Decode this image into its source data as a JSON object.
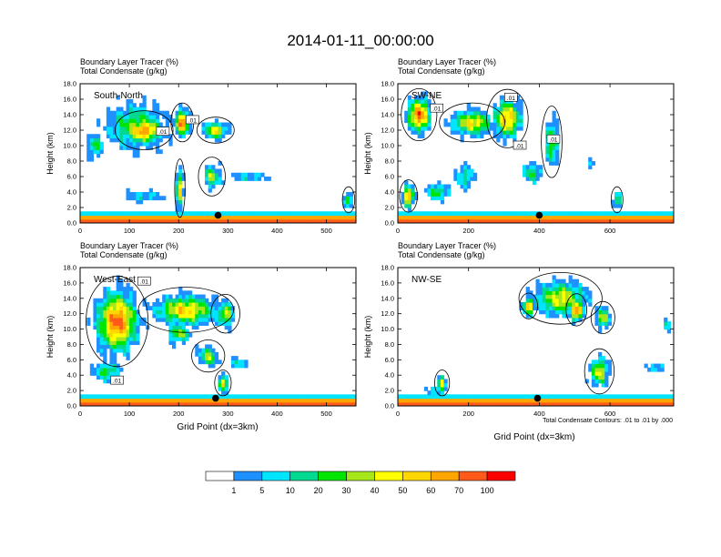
{
  "figure": {
    "title": "2014-01-11_00:00:00",
    "footnote": "Total Condensate Contours: .01 to .01 by .000",
    "x_label": "Grid Point (dx=3km)",
    "y_label": "Height (km)"
  },
  "panel_headers": {
    "line1": "Boundary Layer Tracer   (%)",
    "line2": "Total Condensate   (g/kg)"
  },
  "colorbar": {
    "colors": [
      "#ffffff",
      "#1e90ff",
      "#00e5ff",
      "#00d98f",
      "#00e600",
      "#a6e61a",
      "#ffff00",
      "#ffd700",
      "#ffa500",
      "#ff5a1a",
      "#ff0000"
    ],
    "labels": [
      "1",
      "5",
      "10",
      "20",
      "30",
      "40",
      "50",
      "60",
      "70",
      "100"
    ]
  },
  "chart_data": [
    {
      "type": "heatmap",
      "label": "South-North",
      "xlim": [
        0,
        560
      ],
      "ylim": [
        0,
        18
      ],
      "xticks": [
        0,
        100,
        200,
        300,
        400,
        500
      ],
      "yticks": [
        "0.0",
        "2.0",
        "4.0",
        "6.0",
        "8.0",
        "10.0",
        "12.0",
        "14.0",
        "16.0",
        "18.0"
      ],
      "contour_labels": [
        {
          "text": ".01",
          "x": 168,
          "y": 11.8
        },
        {
          "text": ".01",
          "x": 228,
          "y": 13.3
        }
      ],
      "marker": {
        "x": 280,
        "y": 1.0
      },
      "plumes": [
        {
          "x": [
            0,
            230
          ],
          "y": [
            7,
            18
          ],
          "intensity": 0.55
        },
        {
          "x": [
            60,
            200
          ],
          "y": [
            9,
            15
          ],
          "intensity": 0.95
        },
        {
          "x": [
            180,
            235
          ],
          "y": [
            10,
            16
          ],
          "intensity": 1.0
        },
        {
          "x": [
            0,
            60
          ],
          "y": [
            7,
            13
          ],
          "intensity": 0.5
        },
        {
          "x": [
            230,
            320
          ],
          "y": [
            10,
            14
          ],
          "intensity": 0.75
        },
        {
          "x": [
            235,
            300
          ],
          "y": [
            3,
            9
          ],
          "intensity": 0.6
        },
        {
          "x": [
            280,
            410
          ],
          "y": [
            5,
            7
          ],
          "intensity": 0.4
        },
        {
          "x": [
            190,
            215
          ],
          "y": [
            0,
            9
          ],
          "intensity": 0.85
        },
        {
          "x": [
            530,
            560
          ],
          "y": [
            1,
            5
          ],
          "intensity": 0.6
        },
        {
          "x": [
            60,
            200
          ],
          "y": [
            2,
            5
          ],
          "intensity": 0.35
        }
      ]
    },
    {
      "type": "heatmap",
      "label": "SW-NE",
      "xlim": [
        0,
        780
      ],
      "ylim": [
        0,
        18
      ],
      "xticks": [
        0,
        200,
        400,
        600
      ],
      "yticks": [
        "0.0",
        "2.0",
        "4.0",
        "6.0",
        "8.0",
        "10.0",
        "12.0",
        "14.0",
        "16.0",
        "18.0"
      ],
      "contour_labels": [
        {
          "text": ".01",
          "x": 110,
          "y": 14.8
        },
        {
          "text": ".01",
          "x": 320,
          "y": 16.2
        },
        {
          "text": ".01",
          "x": 345,
          "y": 10.0
        },
        {
          "text": ".01",
          "x": 440,
          "y": 10.8
        }
      ],
      "marker": {
        "x": 400,
        "y": 1.0
      },
      "plumes": [
        {
          "x": [
            0,
            120
          ],
          "y": [
            10,
            18
          ],
          "intensity": 1.0
        },
        {
          "x": [
            0,
            60
          ],
          "y": [
            1,
            6
          ],
          "intensity": 0.9
        },
        {
          "x": [
            100,
            320
          ],
          "y": [
            10,
            16
          ],
          "intensity": 0.75
        },
        {
          "x": [
            240,
            380
          ],
          "y": [
            9,
            18
          ],
          "intensity": 0.85
        },
        {
          "x": [
            400,
            470
          ],
          "y": [
            5,
            16
          ],
          "intensity": 0.6
        },
        {
          "x": [
            140,
            240
          ],
          "y": [
            3,
            9
          ],
          "intensity": 0.45
        },
        {
          "x": [
            330,
            430
          ],
          "y": [
            4,
            9
          ],
          "intensity": 0.5
        },
        {
          "x": [
            520,
            560
          ],
          "y": [
            6,
            9
          ],
          "intensity": 0.35
        },
        {
          "x": [
            600,
            640
          ],
          "y": [
            1,
            5
          ],
          "intensity": 0.6
        },
        {
          "x": [
            40,
            180
          ],
          "y": [
            2,
            6
          ],
          "intensity": 0.5
        }
      ]
    },
    {
      "type": "heatmap",
      "label": "West-East",
      "xlim": [
        0,
        560
      ],
      "ylim": [
        0,
        18
      ],
      "xticks": [
        0,
        100,
        200,
        300,
        400,
        500
      ],
      "yticks": [
        "0.0",
        "2.0",
        "4.0",
        "6.0",
        "8.0",
        "10.0",
        "12.0",
        "14.0",
        "16.0",
        "18.0"
      ],
      "contour_labels": [
        {
          "text": ".01",
          "x": 130,
          "y": 16.2
        },
        {
          "text": ".01",
          "x": 75,
          "y": 3.3
        }
      ],
      "marker": {
        "x": 275,
        "y": 1.0
      },
      "plumes": [
        {
          "x": [
            0,
            150
          ],
          "y": [
            4,
            18
          ],
          "intensity": 1.0
        },
        {
          "x": [
            100,
            330
          ],
          "y": [
            9,
            16
          ],
          "intensity": 0.8
        },
        {
          "x": [
            150,
            250
          ],
          "y": [
            7,
            12
          ],
          "intensity": 0.55
        },
        {
          "x": [
            260,
            330
          ],
          "y": [
            9,
            15
          ],
          "intensity": 0.7
        },
        {
          "x": [
            220,
            300
          ],
          "y": [
            4,
            9
          ],
          "intensity": 0.6
        },
        {
          "x": [
            270,
            310
          ],
          "y": [
            1,
            5
          ],
          "intensity": 0.75
        },
        {
          "x": [
            0,
            110
          ],
          "y": [
            2,
            7
          ],
          "intensity": 0.5
        },
        {
          "x": [
            290,
            350
          ],
          "y": [
            4,
            7
          ],
          "intensity": 0.4
        }
      ]
    },
    {
      "type": "heatmap",
      "label": "NW-SE",
      "xlim": [
        0,
        780
      ],
      "ylim": [
        0,
        18
      ],
      "xticks": [
        0,
        200,
        400,
        600
      ],
      "yticks": [
        "0.0",
        "2.0",
        "4.0",
        "6.0",
        "8.0",
        "10.0",
        "12.0",
        "14.0",
        "16.0",
        "18.0"
      ],
      "contour_labels": [],
      "marker": {
        "x": 395,
        "y": 1.0
      },
      "plumes": [
        {
          "x": [
            320,
            600
          ],
          "y": [
            10,
            18
          ],
          "intensity": 0.7
        },
        {
          "x": [
            470,
            540
          ],
          "y": [
            10,
            15
          ],
          "intensity": 1.0
        },
        {
          "x": [
            340,
            400
          ],
          "y": [
            11,
            15
          ],
          "intensity": 0.9
        },
        {
          "x": [
            540,
            620
          ],
          "y": [
            9,
            14
          ],
          "intensity": 0.65
        },
        {
          "x": [
            520,
            620
          ],
          "y": [
            1,
            8
          ],
          "intensity": 0.7
        },
        {
          "x": [
            100,
            150
          ],
          "y": [
            1,
            5
          ],
          "intensity": 0.7
        },
        {
          "x": [
            60,
            160
          ],
          "y": [
            1,
            3
          ],
          "intensity": 0.45
        },
        {
          "x": [
            680,
            780
          ],
          "y": [
            4,
            6
          ],
          "intensity": 0.4
        },
        {
          "x": [
            740,
            780
          ],
          "y": [
            9,
            12
          ],
          "intensity": 0.4
        }
      ]
    }
  ]
}
